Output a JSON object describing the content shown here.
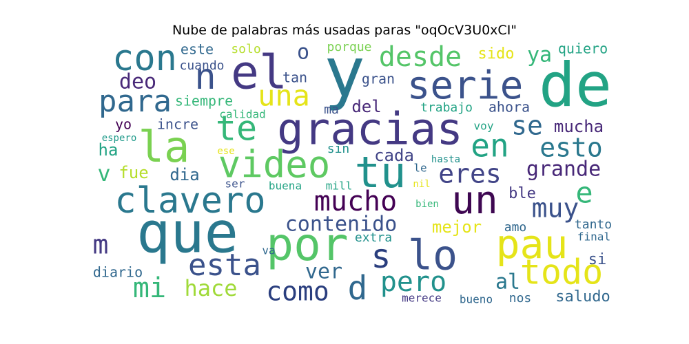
{
  "chart_data": {
    "type": "wordcloud",
    "title": "Nube de palabras más usadas paras \"oqOcV3U0xCI\"",
    "colormap": "viridis",
    "background": "#ffffff",
    "words": [
      {
        "text": "y",
        "color": "#2a788e"
      },
      {
        "text": "de",
        "color": "#22a384"
      },
      {
        "text": "el",
        "color": "#443983"
      },
      {
        "text": "n",
        "color": "#3b528b"
      },
      {
        "text": "con",
        "color": "#2a788e"
      },
      {
        "text": "o",
        "color": "#3b528b"
      },
      {
        "text": "este",
        "color": "#30688e"
      },
      {
        "text": "solo",
        "color": "#b5de2b"
      },
      {
        "text": "porque",
        "color": "#7ad151"
      },
      {
        "text": "desde",
        "color": "#54c568"
      },
      {
        "text": "sido",
        "color": "#e5e419"
      },
      {
        "text": "ya",
        "color": "#35b779"
      },
      {
        "text": "quiero",
        "color": "#22a384"
      },
      {
        "text": "cuando",
        "color": "#3b528b"
      },
      {
        "text": "tan",
        "color": "#3b528b"
      },
      {
        "text": "serie",
        "color": "#3b528b"
      },
      {
        "text": "deo",
        "color": "#482878"
      },
      {
        "text": "una",
        "color": "#e5e419"
      },
      {
        "text": "gran",
        "color": "#3b528b"
      },
      {
        "text": "para",
        "color": "#30688e"
      },
      {
        "text": "siempre",
        "color": "#35b779"
      },
      {
        "text": "ma",
        "color": "#3b528b"
      },
      {
        "text": "del",
        "color": "#482878"
      },
      {
        "text": "trabajo",
        "color": "#22a384"
      },
      {
        "text": "ahora",
        "color": "#3b528b"
      },
      {
        "text": "calidad",
        "color": "#35b779"
      },
      {
        "text": "te",
        "color": "#35b779"
      },
      {
        "text": "gracias",
        "color": "#443983"
      },
      {
        "text": "se",
        "color": "#30688e"
      },
      {
        "text": "yo",
        "color": "#440154"
      },
      {
        "text": "incre",
        "color": "#3b528b"
      },
      {
        "text": "mucha",
        "color": "#482878"
      },
      {
        "text": "voy",
        "color": "#22a384"
      },
      {
        "text": "la",
        "color": "#7ad151"
      },
      {
        "text": "espero",
        "color": "#1f9a8a"
      },
      {
        "text": "en",
        "color": "#22a384"
      },
      {
        "text": "esto",
        "color": "#2a788e"
      },
      {
        "text": "ha",
        "color": "#22a384"
      },
      {
        "text": "ese",
        "color": "#e5e419"
      },
      {
        "text": "sin",
        "color": "#21918c"
      },
      {
        "text": "hasta",
        "color": "#21918c"
      },
      {
        "text": "cada",
        "color": "#414487"
      },
      {
        "text": "video",
        "color": "#5ec962"
      },
      {
        "text": "tu",
        "color": "#21918c"
      },
      {
        "text": "eres",
        "color": "#414487"
      },
      {
        "text": "grande",
        "color": "#482878"
      },
      {
        "text": "v",
        "color": "#35b779"
      },
      {
        "text": "fue",
        "color": "#b5de2b"
      },
      {
        "text": "dia",
        "color": "#31688e"
      },
      {
        "text": "le",
        "color": "#31688e"
      },
      {
        "text": "nil",
        "color": "#e5e419"
      },
      {
        "text": "ser",
        "color": "#3b528b"
      },
      {
        "text": "buena",
        "color": "#22a384"
      },
      {
        "text": "mill",
        "color": "#22a384"
      },
      {
        "text": "ble",
        "color": "#443983"
      },
      {
        "text": "clavero",
        "color": "#2a788e"
      },
      {
        "text": "mucho",
        "color": "#440154"
      },
      {
        "text": "un",
        "color": "#3e0751"
      },
      {
        "text": "e",
        "color": "#35b779"
      },
      {
        "text": "bien",
        "color": "#35b779"
      },
      {
        "text": "muy",
        "color": "#3b528b"
      },
      {
        "text": "que",
        "color": "#2a788e"
      },
      {
        "text": "contenido",
        "color": "#3b528b"
      },
      {
        "text": "m",
        "color": "#443983"
      },
      {
        "text": "mejor",
        "color": "#e5e419"
      },
      {
        "text": "amo",
        "color": "#31688e"
      },
      {
        "text": "tanto",
        "color": "#31688e"
      },
      {
        "text": "por",
        "color": "#54c568"
      },
      {
        "text": "extra",
        "color": "#21918c"
      },
      {
        "text": "pau",
        "color": "#e5e419"
      },
      {
        "text": "final",
        "color": "#30688e"
      },
      {
        "text": "s",
        "color": "#2a3e7e"
      },
      {
        "text": "lo",
        "color": "#3b528b"
      },
      {
        "text": "esta",
        "color": "#3b528b"
      },
      {
        "text": "va",
        "color": "#30688e"
      },
      {
        "text": "si",
        "color": "#3b528b"
      },
      {
        "text": "diario",
        "color": "#31688e"
      },
      {
        "text": "ver",
        "color": "#31688e"
      },
      {
        "text": "todo",
        "color": "#e5e419"
      },
      {
        "text": "mi",
        "color": "#35b779"
      },
      {
        "text": "hace",
        "color": "#a0da39"
      },
      {
        "text": "como",
        "color": "#2a3e7e"
      },
      {
        "text": "d",
        "color": "#30688e"
      },
      {
        "text": "pero",
        "color": "#21918c"
      },
      {
        "text": "al",
        "color": "#2a788e"
      },
      {
        "text": "merece",
        "color": "#443983"
      },
      {
        "text": "bueno",
        "color": "#31688e"
      },
      {
        "text": "nos",
        "color": "#30688e"
      },
      {
        "text": "saludo",
        "color": "#31688e"
      }
    ]
  }
}
